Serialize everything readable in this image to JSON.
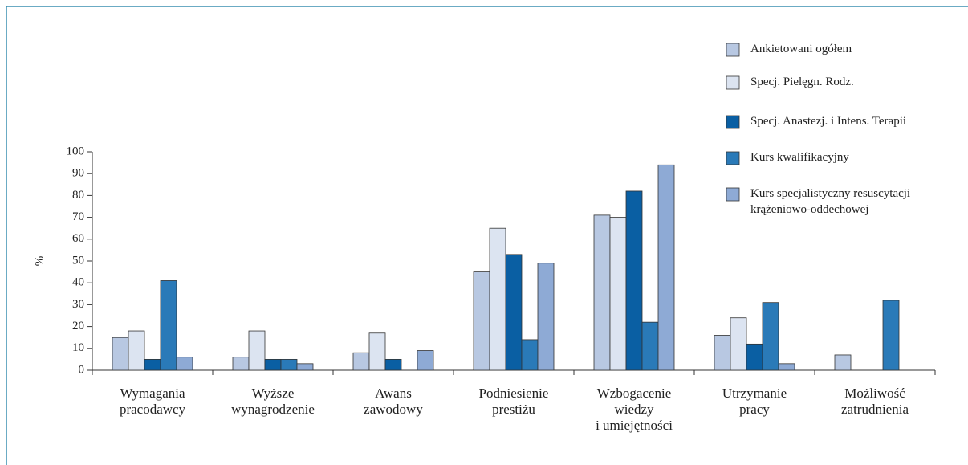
{
  "chart_data": {
    "type": "bar",
    "y_label": "%",
    "categories": [
      "Wymagania\npracodawcy",
      "Wyższe\nwynagrodzenie",
      "Awans\nzawodowy",
      "Podniesienie\nprestiżu",
      "Wzbogacenie\nwiedzy\ni umiejętności",
      "Utrzymanie\npracy",
      "Możliwość\nzatrudnienia"
    ],
    "series": [
      {
        "name": "Ankietowani ogółem",
        "color": "#b8c8e2",
        "values": [
          15,
          6,
          8,
          45,
          71,
          16,
          7
        ]
      },
      {
        "name": "Specj. Pielęgn. Rodz.",
        "color": "#dce4f1",
        "values": [
          18,
          18,
          17,
          65,
          70,
          24,
          0
        ]
      },
      {
        "name": "Specj. Anastezj. i Intens. Terapii",
        "color": "#0a5fa3",
        "values": [
          5,
          5,
          5,
          53,
          82,
          12,
          0
        ]
      },
      {
        "name": "Kurs kwalifikacyjny",
        "color": "#2a7ab8",
        "values": [
          41,
          5,
          0,
          14,
          22,
          31,
          32
        ]
      },
      {
        "name": "Kurs specjalistyczny resuscytacji\nkrążeniowo-oddechowej",
        "color": "#8eaad5",
        "values": [
          6,
          3,
          9,
          49,
          94,
          3,
          0
        ]
      }
    ],
    "ylim": [
      0,
      100
    ],
    "yticks": [
      0,
      10,
      20,
      30,
      40,
      50,
      60,
      70,
      80,
      90,
      100
    ],
    "legend": "top-right"
  }
}
